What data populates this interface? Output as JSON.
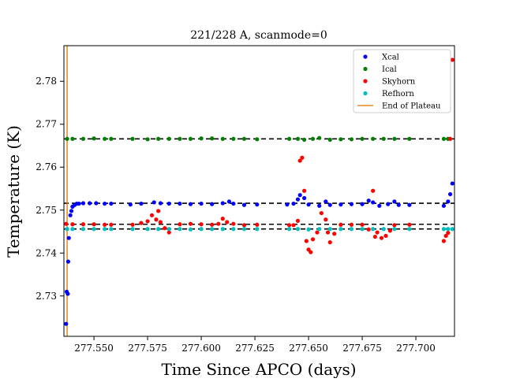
{
  "chart_data": {
    "type": "scatter",
    "title": "221/228 A, scanmode=0",
    "xlabel": "Time Since APCO (days)",
    "ylabel": "Temperature (K)",
    "xlim": [
      277.536,
      277.718
    ],
    "ylim": [
      2.7206,
      2.7883
    ],
    "xticks": [
      277.55,
      277.575,
      277.6,
      277.625,
      277.65,
      277.675,
      277.7
    ],
    "xtick_labels": [
      "277.550",
      "277.575",
      "277.600",
      "277.625",
      "277.650",
      "277.675",
      "277.700"
    ],
    "yticks": [
      2.73,
      2.74,
      2.75,
      2.76,
      2.77,
      2.78
    ],
    "ytick_labels": [
      "2.73",
      "2.74",
      "2.75",
      "2.76",
      "2.77",
      "2.78"
    ],
    "legend_position": "top-right",
    "reference_lines": [
      {
        "y": 2.7666,
        "style": "dashed",
        "color": "#000000"
      },
      {
        "y": 2.7516,
        "style": "dashed",
        "color": "#000000"
      },
      {
        "y": 2.7467,
        "style": "dashed",
        "color": "#000000"
      },
      {
        "y": 2.7456,
        "style": "dashed",
        "color": "#000000"
      }
    ],
    "vertical_lines": [
      {
        "name": "End of Plateau",
        "x": 277.5375,
        "color": "#e08a1e"
      }
    ],
    "series": [
      {
        "name": "Xcal",
        "color": "#0000ff",
        "x": [
          277.537,
          277.5373,
          277.5378,
          277.538,
          277.5383,
          277.539,
          277.5395,
          277.54,
          277.541,
          277.542,
          277.543,
          277.545,
          277.548,
          277.551,
          277.555,
          277.558,
          277.567,
          277.572,
          277.578,
          277.581,
          277.585,
          277.59,
          277.595,
          277.6,
          277.605,
          277.61,
          277.613,
          277.615,
          277.62,
          277.626,
          277.64,
          277.643,
          277.645,
          277.646,
          277.648,
          277.65,
          277.655,
          277.658,
          277.66,
          277.665,
          277.67,
          277.675,
          277.678,
          277.68,
          277.683,
          277.687,
          277.69,
          277.692,
          277.697,
          277.713,
          277.715,
          277.716,
          277.717
        ],
        "y": [
          2.7235,
          2.731,
          2.7305,
          2.738,
          2.7435,
          2.7488,
          2.7498,
          2.7508,
          2.7512,
          2.7515,
          2.7515,
          2.7516,
          2.7516,
          2.7516,
          2.7515,
          2.7515,
          2.7513,
          2.7515,
          2.7518,
          2.7516,
          2.7515,
          2.7515,
          2.7514,
          2.7515,
          2.7514,
          2.7516,
          2.752,
          2.7515,
          2.7512,
          2.7513,
          2.7513,
          2.7515,
          2.7525,
          2.7535,
          2.7528,
          2.7513,
          2.751,
          2.752,
          2.7512,
          2.7513,
          2.7514,
          2.7514,
          2.7522,
          2.7518,
          2.751,
          2.7514,
          2.752,
          2.7512,
          2.7512,
          2.751,
          2.752,
          2.7537,
          2.7562
        ]
      },
      {
        "name": "Ical",
        "color": "#008000",
        "x": [
          277.5375,
          277.54,
          277.545,
          277.55,
          277.555,
          277.558,
          277.568,
          277.575,
          277.58,
          277.585,
          277.59,
          277.595,
          277.6,
          277.605,
          277.61,
          277.615,
          277.62,
          277.626,
          277.641,
          277.645,
          277.648,
          277.652,
          277.655,
          277.66,
          277.665,
          277.67,
          277.675,
          277.68,
          277.685,
          277.69,
          277.697,
          277.713,
          277.715
        ],
        "y": [
          2.7666,
          2.7666,
          2.7666,
          2.7667,
          2.7666,
          2.7666,
          2.7666,
          2.7665,
          2.7666,
          2.7666,
          2.7666,
          2.7666,
          2.7667,
          2.7667,
          2.7666,
          2.7666,
          2.7666,
          2.7665,
          2.7666,
          2.7666,
          2.7664,
          2.7666,
          2.7668,
          2.7664,
          2.7665,
          2.7665,
          2.7666,
          2.7666,
          2.7666,
          2.7666,
          2.7666,
          2.7666,
          2.7666
        ]
      },
      {
        "name": "Skyhorn",
        "color": "#ff0000",
        "x": [
          277.537,
          277.54,
          277.545,
          277.55,
          277.555,
          277.558,
          277.568,
          277.572,
          277.575,
          277.577,
          277.579,
          277.58,
          277.581,
          277.583,
          277.585,
          277.59,
          277.595,
          277.6,
          277.605,
          277.608,
          277.61,
          277.612,
          277.615,
          277.62,
          277.626,
          277.641,
          277.643,
          277.645,
          277.646,
          277.647,
          277.648,
          277.649,
          277.65,
          277.651,
          277.652,
          277.654,
          277.656,
          277.658,
          277.659,
          277.66,
          277.662,
          277.665,
          277.67,
          277.675,
          277.678,
          277.68,
          277.681,
          277.682,
          277.684,
          277.686,
          277.688,
          277.69,
          277.697,
          277.713,
          277.714,
          277.715,
          277.716,
          277.717
        ],
        "y": [
          2.7468,
          2.7467,
          2.7467,
          2.7467,
          2.7466,
          2.7466,
          2.7466,
          2.747,
          2.7474,
          2.7488,
          2.7478,
          2.7498,
          2.7472,
          2.7458,
          2.7448,
          2.7467,
          2.7468,
          2.7467,
          2.7466,
          2.7468,
          2.748,
          2.7472,
          2.7468,
          2.7465,
          2.7466,
          2.7465,
          2.7465,
          2.7475,
          2.7615,
          2.7622,
          2.7545,
          2.7428,
          2.7408,
          2.7402,
          2.7432,
          2.7448,
          2.7493,
          2.7478,
          2.7448,
          2.7425,
          2.7445,
          2.7466,
          2.7466,
          2.7466,
          2.7455,
          2.7545,
          2.7438,
          2.7448,
          2.7435,
          2.744,
          2.7452,
          2.7465,
          2.7466,
          2.7428,
          2.744,
          2.7447,
          2.7666,
          2.785
        ]
      },
      {
        "name": "Refhorn",
        "color": "#00bfbf",
        "x": [
          277.5375,
          277.54,
          277.545,
          277.55,
          277.555,
          277.558,
          277.568,
          277.575,
          277.58,
          277.585,
          277.59,
          277.595,
          277.6,
          277.605,
          277.61,
          277.615,
          277.62,
          277.626,
          277.641,
          277.645,
          277.65,
          277.655,
          277.66,
          277.665,
          277.67,
          277.675,
          277.68,
          277.685,
          277.69,
          277.697,
          277.713,
          277.715,
          277.717
        ],
        "y": [
          2.7456,
          2.7456,
          2.7456,
          2.7456,
          2.7456,
          2.7456,
          2.7456,
          2.7456,
          2.7456,
          2.7456,
          2.7456,
          2.7455,
          2.7456,
          2.7456,
          2.7456,
          2.7456,
          2.7456,
          2.7456,
          2.7456,
          2.7456,
          2.7455,
          2.7456,
          2.7456,
          2.7456,
          2.7456,
          2.7456,
          2.7456,
          2.7456,
          2.7456,
          2.7456,
          2.7456,
          2.7456,
          2.7456
        ]
      }
    ]
  }
}
